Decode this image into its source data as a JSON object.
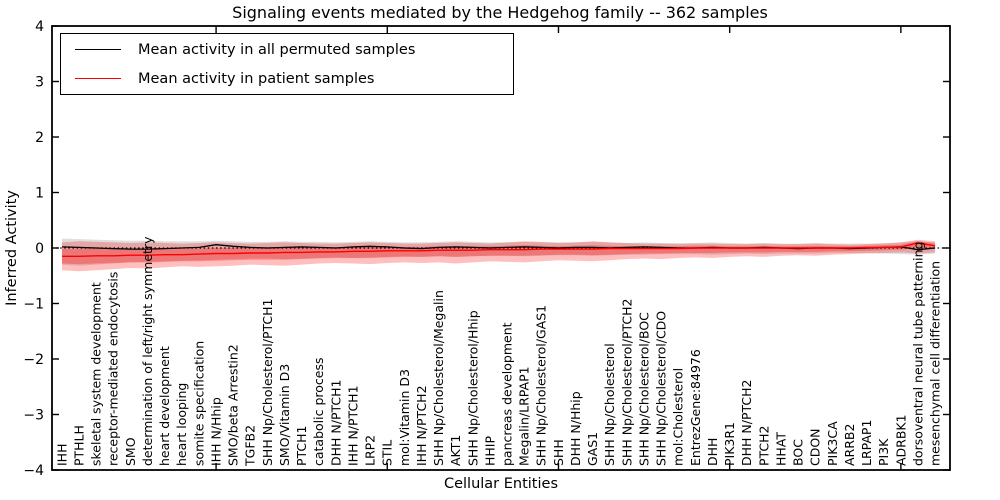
{
  "title": "Signaling events mediated by the Hedgehog family -- 362 samples",
  "axes": {
    "xlabel": "Cellular Entities",
    "ylabel": "Inferred Activity",
    "ytick_labels": [
      "4",
      "3",
      "2",
      "1",
      "0",
      "−1",
      "−2",
      "−3",
      "−4"
    ],
    "ytick_values": [
      4,
      3,
      2,
      1,
      0,
      -1,
      -2,
      -3,
      -4
    ]
  },
  "legend": {
    "entries": [
      {
        "label": "Mean activity in all permuted samples",
        "color": "#000000"
      },
      {
        "label": "Mean activity in patient samples",
        "color": "#ff0000"
      }
    ]
  },
  "chart_data": {
    "type": "line",
    "title": "Signaling events mediated by the Hedgehog family -- 362 samples",
    "xlabel": "Cellular Entities",
    "ylabel": "Inferred Activity",
    "ylim": [
      -4,
      4
    ],
    "grid": false,
    "legend_position": "upper left",
    "zero_reference_line": {
      "value": 0,
      "style": "dotted",
      "color": "#000000"
    },
    "x_major_ticks_1based": [
      10,
      20,
      30,
      40,
      50
    ],
    "colors": {
      "permuted_mean": "#000000",
      "patient_mean": "#ff0000",
      "permuted_band": "#888888",
      "patient_band": "#ff0000"
    },
    "categories": [
      "IHH",
      "PTHLH",
      "skeletal system development",
      "receptor-mediated endocytosis",
      "SMO",
      "determination of left/right symmetry",
      "heart development",
      "heart looping",
      "somite specification",
      "IHH N/Hhip",
      "SMO/beta Arrestin2",
      "TGFB2",
      "SHH Np/Cholesterol/PTCH1",
      "SMO/Vitamin D3",
      "PTCH1",
      "catabolic process",
      "DHH N/PTCH1",
      "IHH N/PTCH1",
      "LRP2",
      "STIL",
      "mol:Vitamin D3",
      "IHH N/PTCH2",
      "SHH Np/Cholesterol/Megalin",
      "AKT1",
      "SHH Np/Cholesterol/Hhip",
      "HHIP",
      "pancreas development",
      "Megalin/LRPAP1",
      "SHH Np/Cholesterol/GAS1",
      "SHH",
      "DHH N/Hhip",
      "GAS1",
      "SHH Np/Cholesterol",
      "SHH Np/Cholesterol/PTCH2",
      "SHH Np/Cholesterol/BOC",
      "SHH Np/Cholesterol/CDO",
      "mol:Cholesterol",
      "EntrezGene:84976",
      "DHH",
      "PIK3R1",
      "DHH N/PTCH2",
      "PTCH2",
      "HHAT",
      "BOC",
      "CDON",
      "PIK3CA",
      "ARRB2",
      "LRPAP1",
      "PI3K",
      "ADRBK1",
      "dorsoventral neural tube patterning",
      "mesenchymal cell differentiation"
    ],
    "series": [
      {
        "name": "Mean activity in all permuted samples",
        "values": [
          0.02,
          0.01,
          0.0,
          -0.01,
          -0.02,
          -0.02,
          -0.01,
          0.0,
          0.01,
          0.06,
          0.03,
          0.01,
          0.0,
          0.01,
          0.02,
          0.01,
          0.0,
          0.02,
          0.03,
          0.02,
          0.0,
          -0.01,
          0.01,
          0.02,
          0.01,
          0.0,
          0.01,
          0.02,
          0.01,
          0.0,
          0.01,
          0.01,
          0.0,
          0.01,
          0.02,
          0.01,
          0.0,
          0.0,
          0.01,
          0.0,
          0.0,
          0.01,
          0.0,
          -0.01,
          0.0,
          0.0,
          -0.01,
          0.0,
          0.01,
          0.02,
          -0.03,
          0.0
        ]
      },
      {
        "name": "Mean activity in patient samples",
        "values": [
          -0.15,
          -0.15,
          -0.14,
          -0.14,
          -0.13,
          -0.13,
          -0.12,
          -0.12,
          -0.11,
          -0.1,
          -0.1,
          -0.09,
          -0.09,
          -0.08,
          -0.08,
          -0.07,
          -0.07,
          -0.06,
          -0.06,
          -0.05,
          -0.05,
          -0.05,
          -0.04,
          -0.04,
          -0.04,
          -0.03,
          -0.03,
          -0.03,
          -0.02,
          -0.02,
          -0.02,
          -0.02,
          -0.01,
          -0.01,
          -0.01,
          -0.01,
          -0.01,
          0.0,
          0.0,
          0.0,
          0.0,
          0.0,
          0.0,
          0.0,
          0.0,
          0.0,
          0.0,
          0.01,
          0.01,
          0.02,
          0.09,
          0.04
        ]
      }
    ],
    "bands": [
      {
        "name": "permuted-range-band",
        "upper": [
          0.17,
          0.16,
          0.15,
          0.14,
          0.13,
          0.13,
          0.12,
          0.12,
          0.12,
          0.13,
          0.12,
          0.11,
          0.11,
          0.12,
          0.11,
          0.11,
          0.1,
          0.11,
          0.12,
          0.11,
          0.1,
          0.1,
          0.11,
          0.12,
          0.11,
          0.1,
          0.1,
          0.11,
          0.1,
          0.1,
          0.1,
          0.11,
          0.1,
          0.09,
          0.1,
          0.09,
          0.09,
          0.09,
          0.1,
          0.09,
          0.08,
          0.09,
          0.08,
          0.08,
          0.09,
          0.08,
          0.08,
          0.08,
          0.09,
          0.1,
          0.12,
          0.1
        ],
        "lower": [
          -0.3,
          -0.32,
          -0.3,
          -0.28,
          -0.26,
          -0.25,
          -0.24,
          -0.23,
          -0.22,
          -0.21,
          -0.2,
          -0.19,
          -0.19,
          -0.2,
          -0.19,
          -0.18,
          -0.17,
          -0.18,
          -0.17,
          -0.16,
          -0.15,
          -0.16,
          -0.15,
          -0.16,
          -0.15,
          -0.14,
          -0.14,
          -0.15,
          -0.14,
          -0.13,
          -0.13,
          -0.14,
          -0.13,
          -0.12,
          -0.12,
          -0.11,
          -0.11,
          -0.11,
          -0.12,
          -0.11,
          -0.1,
          -0.11,
          -0.1,
          -0.1,
          -0.1,
          -0.09,
          -0.09,
          -0.09,
          -0.1,
          -0.11,
          -0.12,
          -0.1
        ]
      },
      {
        "name": "patient-outer-band",
        "upper": [
          0.1,
          0.12,
          0.11,
          0.1,
          0.09,
          0.1,
          0.09,
          0.08,
          0.09,
          0.1,
          0.09,
          0.08,
          0.09,
          0.1,
          0.09,
          0.08,
          0.08,
          0.09,
          0.1,
          0.09,
          0.08,
          0.08,
          0.09,
          0.1,
          0.09,
          0.08,
          0.1,
          0.12,
          0.11,
          0.09,
          0.1,
          0.12,
          0.1,
          0.09,
          0.08,
          0.08,
          0.07,
          0.08,
          0.08,
          0.07,
          0.07,
          0.08,
          0.07,
          0.07,
          0.08,
          0.07,
          0.06,
          0.07,
          0.08,
          0.1,
          0.15,
          0.12
        ],
        "lower": [
          -0.4,
          -0.42,
          -0.4,
          -0.38,
          -0.36,
          -0.37,
          -0.35,
          -0.33,
          -0.34,
          -0.33,
          -0.32,
          -0.3,
          -0.31,
          -0.32,
          -0.3,
          -0.28,
          -0.27,
          -0.28,
          -0.29,
          -0.27,
          -0.26,
          -0.27,
          -0.26,
          -0.28,
          -0.26,
          -0.24,
          -0.25,
          -0.26,
          -0.24,
          -0.22,
          -0.23,
          -0.24,
          -0.22,
          -0.2,
          -0.19,
          -0.2,
          -0.18,
          -0.17,
          -0.18,
          -0.16,
          -0.15,
          -0.16,
          -0.14,
          -0.13,
          -0.14,
          -0.12,
          -0.11,
          -0.1,
          -0.09,
          -0.08,
          -0.1,
          -0.08
        ]
      },
      {
        "name": "patient-inner-band",
        "upper": [
          -0.02,
          -0.01,
          -0.01,
          -0.02,
          -0.02,
          -0.02,
          -0.02,
          -0.02,
          -0.01,
          0.0,
          0.0,
          0.0,
          0.01,
          0.02,
          0.01,
          0.01,
          0.01,
          0.02,
          0.02,
          0.02,
          0.02,
          0.02,
          0.03,
          0.03,
          0.03,
          0.03,
          0.04,
          0.05,
          0.04,
          0.03,
          0.04,
          0.05,
          0.04,
          0.03,
          0.03,
          0.03,
          0.03,
          0.04,
          0.04,
          0.03,
          0.03,
          0.04,
          0.03,
          0.03,
          0.04,
          0.03,
          0.03,
          0.04,
          0.05,
          0.06,
          0.12,
          0.08
        ],
        "lower": [
          -0.28,
          -0.29,
          -0.28,
          -0.27,
          -0.26,
          -0.26,
          -0.25,
          -0.24,
          -0.24,
          -0.23,
          -0.22,
          -0.21,
          -0.21,
          -0.21,
          -0.2,
          -0.19,
          -0.18,
          -0.18,
          -0.18,
          -0.17,
          -0.16,
          -0.16,
          -0.15,
          -0.16,
          -0.15,
          -0.14,
          -0.14,
          -0.14,
          -0.13,
          -0.12,
          -0.12,
          -0.13,
          -0.12,
          -0.11,
          -0.1,
          -0.1,
          -0.09,
          -0.09,
          -0.09,
          -0.08,
          -0.08,
          -0.08,
          -0.07,
          -0.07,
          -0.07,
          -0.06,
          -0.06,
          -0.05,
          -0.04,
          -0.03,
          0.02,
          -0.01
        ]
      }
    ]
  }
}
